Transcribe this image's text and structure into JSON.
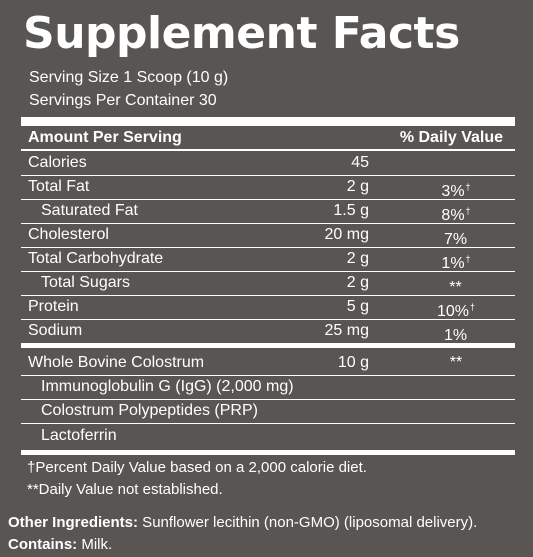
{
  "title": "Supplement Facts",
  "serving_size": "Serving Size 1 Scoop (10 g)",
  "servings_per_container": "Servings Per Container 30",
  "header": {
    "amount_label": "Amount Per Serving",
    "dv_label": "% Daily Value"
  },
  "nutrients": [
    {
      "name": "Calories",
      "amount": "45",
      "dv": "",
      "dagger": ""
    },
    {
      "name": "Total Fat",
      "amount": "2 g",
      "dv": "3%",
      "dagger": "†"
    },
    {
      "name": "Saturated Fat",
      "amount": "1.5 g",
      "dv": "8%",
      "dagger": "†"
    },
    {
      "name": "Cholesterol",
      "amount": "20 mg",
      "dv": "7%",
      "dagger": ""
    },
    {
      "name": "Total Carbohydrate",
      "amount": "2 g",
      "dv": "1%",
      "dagger": "†"
    },
    {
      "name": "Total Sugars",
      "amount": "2 g",
      "dv": "**",
      "dagger": ""
    },
    {
      "name": "Protein",
      "amount": "5 g",
      "dv": "10%",
      "dagger": "†"
    },
    {
      "name": "Sodium",
      "amount": "25 mg",
      "dv": "1%",
      "dagger": ""
    }
  ],
  "blend": {
    "name": "Whole Bovine Colostrum",
    "amount": "10 g",
    "dv": "**",
    "components": [
      "Immunoglobulin G (IgG) (2,000 mg)",
      "Colostrum Polypeptides (PRP)",
      "Lactoferrin"
    ]
  },
  "footnotes": [
    "†Percent Daily Value based on a 2,000 calorie diet.",
    "**Daily Value not established."
  ],
  "other_ingredients": {
    "label": "Other Ingredients:",
    "text": " Sunflower lecithin (non-GMO) (liposomal delivery)."
  },
  "contains": {
    "label": "Contains:",
    "text": " Milk."
  },
  "colors": {
    "background": "#585553",
    "text": "#ffffff"
  }
}
